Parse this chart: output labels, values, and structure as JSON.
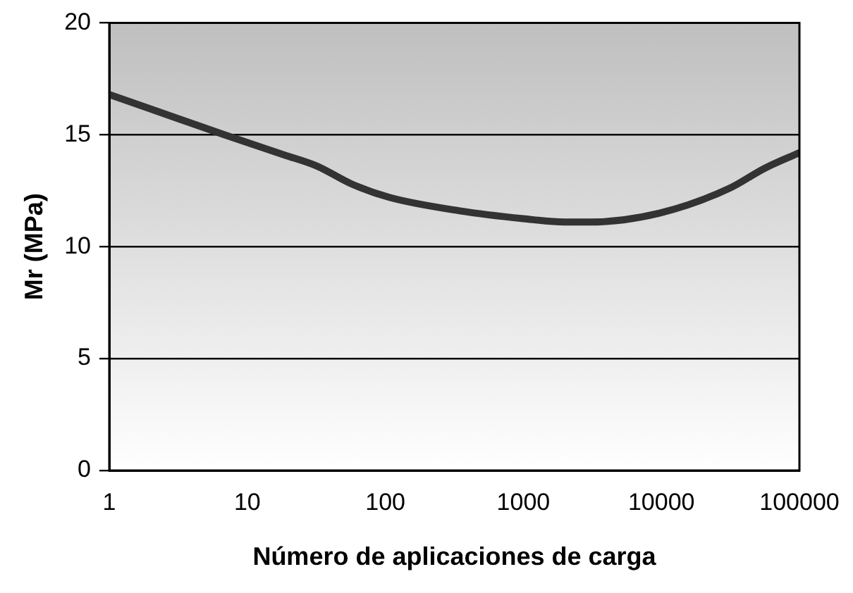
{
  "chart_data": {
    "type": "line",
    "xlabel": "Número de aplicaciones de carga",
    "ylabel": "Mr (MPa)",
    "x": [
      1,
      6.8,
      18.5,
      32,
      57,
      107,
      345,
      1000,
      1990,
      3000,
      9700,
      31000,
      56000,
      100000
    ],
    "series": [
      {
        "color": "#333333",
        "values": [
          16.8,
          15.0,
          14.1,
          13.6,
          12.8,
          12.2,
          11.6,
          11.25,
          11.1,
          11.1,
          11.5,
          12.6,
          13.5,
          14.2
        ]
      }
    ],
    "xlim": [
      1,
      100000
    ],
    "xticks": [
      1,
      10,
      100,
      1000,
      10000,
      100000
    ],
    "ylim": [
      0,
      20
    ],
    "yticks": [
      0,
      5,
      10,
      15,
      20
    ],
    "log": "x",
    "grid": "y",
    "legend": false,
    "marker": "none",
    "line_style": "solid"
  }
}
